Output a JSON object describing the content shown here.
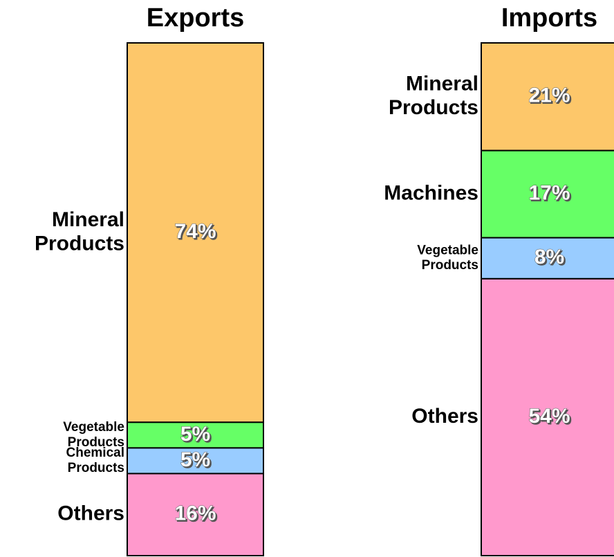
{
  "chart_data": [
    {
      "type": "stacked_bar",
      "title": "Exports",
      "categories": [
        "Mineral Products",
        "Vegetable Products",
        "Chemical Products",
        "Others"
      ],
      "values": [
        74,
        5,
        5,
        16
      ],
      "value_labels": [
        "74%",
        "5%",
        "5%",
        "16%"
      ],
      "colors": [
        "#fdc76a",
        "#66ff66",
        "#99ccff",
        "#ff99cc"
      ]
    },
    {
      "type": "stacked_bar",
      "title": "Imports",
      "categories": [
        "Mineral Products",
        "Machines",
        "Vegetable Products",
        "Others"
      ],
      "values": [
        21,
        17,
        8,
        54
      ],
      "value_labels": [
        "21%",
        "17%",
        "8%",
        "54%"
      ],
      "colors": [
        "#fdc76a",
        "#66ff66",
        "#99ccff",
        "#ff99cc"
      ]
    }
  ]
}
